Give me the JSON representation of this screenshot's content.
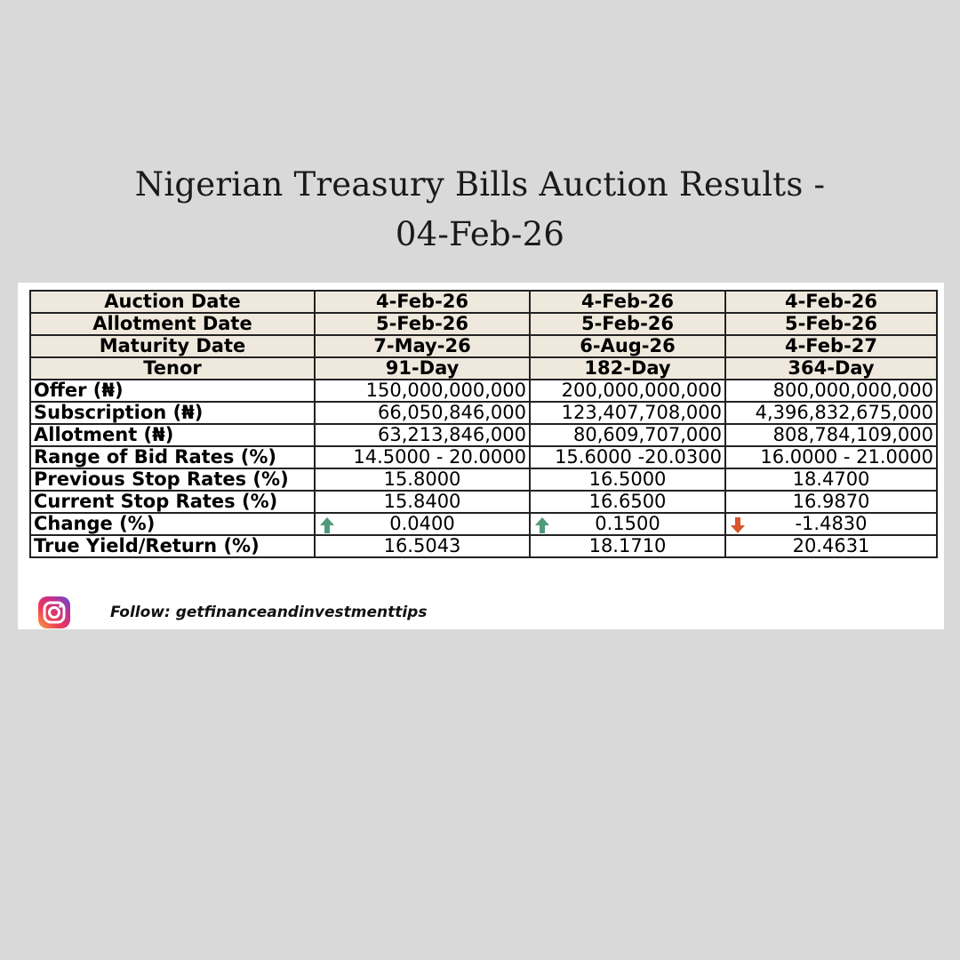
{
  "title": {
    "line1": "Nigerian Treasury Bills Auction Results -",
    "line2": "04-Feb-26"
  },
  "table": {
    "header_rows": [
      {
        "label": "Auction Date",
        "values": [
          "4-Feb-26",
          "4-Feb-26",
          "4-Feb-26"
        ]
      },
      {
        "label": "Allotment Date",
        "values": [
          "5-Feb-26",
          "5-Feb-26",
          "5-Feb-26"
        ]
      },
      {
        "label": "Maturity Date",
        "values": [
          "7-May-26",
          "6-Aug-26",
          "4-Feb-27"
        ]
      },
      {
        "label": "Tenor",
        "values": [
          "91-Day",
          "182-Day",
          "364-Day"
        ]
      }
    ],
    "amount_rows": [
      {
        "label": "Offer (₦)",
        "values": [
          "150,000,000,000",
          "200,000,000,000",
          "800,000,000,000"
        ]
      },
      {
        "label": "Subscription (₦)",
        "values": [
          "66,050,846,000",
          "123,407,708,000",
          "4,396,832,675,000"
        ]
      },
      {
        "label": "Allotment (₦)",
        "values": [
          "63,213,846,000",
          "80,609,707,000",
          "808,784,109,000"
        ]
      }
    ],
    "rate_rows": [
      {
        "label": "Range of Bid Rates (%)",
        "values": [
          "14.5000 - 20.0000",
          "15.6000 -20.0300",
          "16.0000 - 21.0000"
        ]
      },
      {
        "label": "Previous Stop Rates (%)",
        "values": [
          "15.8000",
          "16.5000",
          "18.4700"
        ]
      },
      {
        "label": "Current Stop Rates (%)",
        "values": [
          "15.8400",
          "16.6500",
          "16.9870"
        ]
      }
    ],
    "change_row": {
      "label": "Change (%)",
      "values": [
        "0.0400",
        "0.1500",
        "-1.4830"
      ],
      "directions": [
        "up",
        "up",
        "down"
      ]
    },
    "yield_row": {
      "label": "True Yield/Return (%)",
      "values": [
        "16.5043",
        "18.1710",
        "20.4631"
      ]
    }
  },
  "colors": {
    "arrow_up": "#4f9a7a",
    "arrow_down": "#d9532b",
    "header_bg": "#efe9dd",
    "page_bg": "#d9d9d9"
  },
  "footer": {
    "icon": "instagram-icon",
    "text": "Follow: getfinanceandinvestmenttips"
  }
}
